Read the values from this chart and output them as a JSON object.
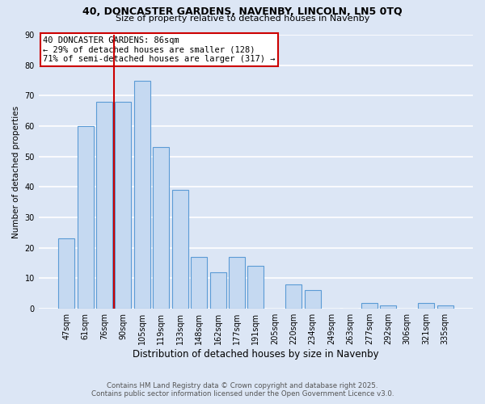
{
  "title1": "40, DONCASTER GARDENS, NAVENBY, LINCOLN, LN5 0TQ",
  "title2": "Size of property relative to detached houses in Navenby",
  "xlabel": "Distribution of detached houses by size in Navenby",
  "ylabel": "Number of detached properties",
  "categories": [
    "47sqm",
    "61sqm",
    "76sqm",
    "90sqm",
    "105sqm",
    "119sqm",
    "133sqm",
    "148sqm",
    "162sqm",
    "177sqm",
    "191sqm",
    "205sqm",
    "220sqm",
    "234sqm",
    "249sqm",
    "263sqm",
    "277sqm",
    "292sqm",
    "306sqm",
    "321sqm",
    "335sqm"
  ],
  "values": [
    23,
    60,
    68,
    68,
    75,
    53,
    39,
    17,
    12,
    17,
    14,
    0,
    8,
    6,
    0,
    0,
    2,
    1,
    0,
    2,
    1
  ],
  "bar_color": "#c5d9f1",
  "bar_edge_color": "#5b9bd5",
  "annotation_title": "40 DONCASTER GARDENS: 86sqm",
  "annotation_line1": "← 29% of detached houses are smaller (128)",
  "annotation_line2": "71% of semi-detached houses are larger (317) →",
  "annotation_box_color": "#ffffff",
  "annotation_box_edge": "#cc0000",
  "vline_color": "#cc0000",
  "footer1": "Contains HM Land Registry data © Crown copyright and database right 2025.",
  "footer2": "Contains public sector information licensed under the Open Government Licence v3.0.",
  "bg_color": "#dce6f5",
  "plot_bg_color": "#dce6f5",
  "ylim": [
    0,
    90
  ],
  "grid_color": "#ffffff",
  "vline_x": 2.5
}
